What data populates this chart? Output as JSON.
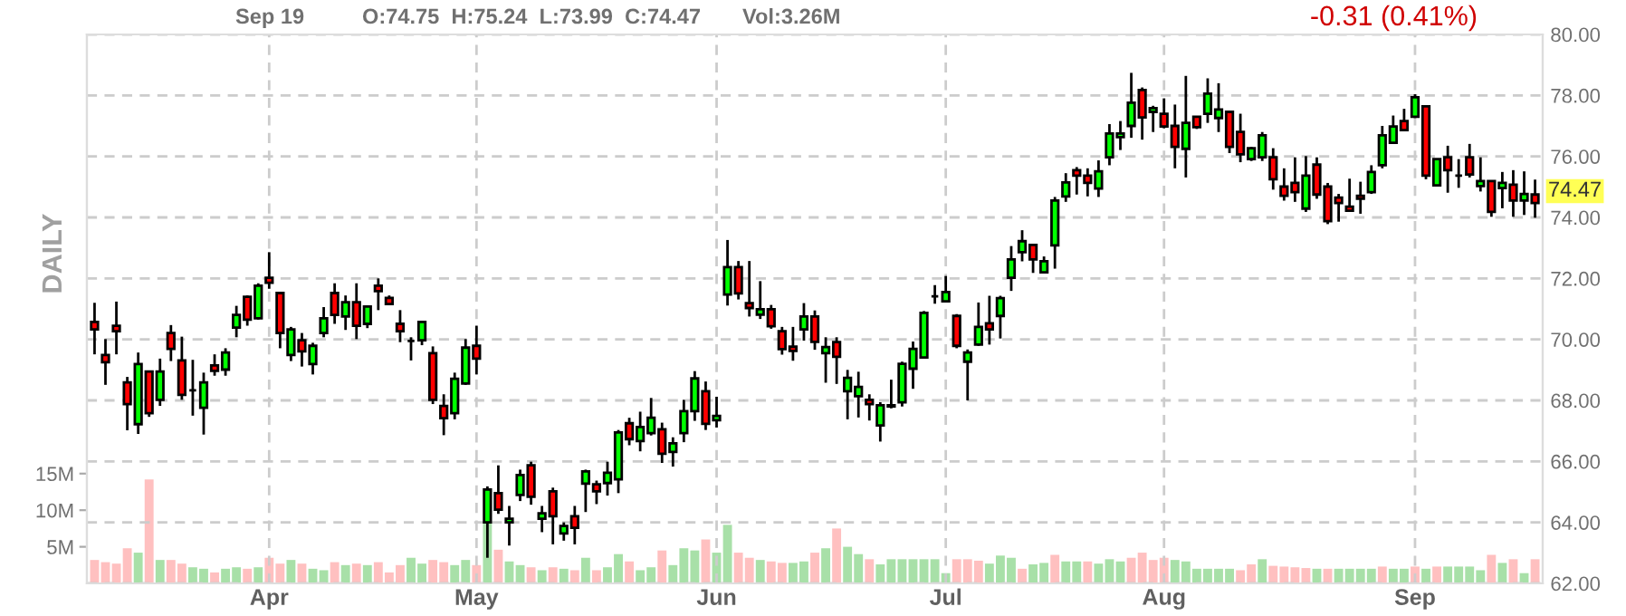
{
  "chart_data": {
    "type": "candlestick",
    "categories": [
      null,
      null,
      null,
      null,
      null,
      null,
      null,
      null,
      null,
      null,
      null,
      null,
      null,
      null,
      null,
      null,
      "Apr",
      null,
      null,
      null,
      null,
      null,
      null,
      null,
      null,
      null,
      null,
      null,
      null,
      null,
      null,
      null,
      null,
      null,
      null,
      "May",
      null,
      null,
      null,
      null,
      null,
      null,
      null,
      null,
      null,
      null,
      null,
      null,
      null,
      null,
      null,
      null,
      null,
      null,
      null,
      null,
      null,
      "Jun",
      null,
      null,
      null,
      null,
      null,
      null,
      null,
      null,
      null,
      null,
      null,
      null,
      null,
      null,
      null,
      null,
      null,
      null,
      null,
      null,
      "Jul",
      null,
      null,
      null,
      null,
      null,
      null,
      null,
      null,
      null,
      null,
      null,
      null,
      null,
      null,
      null,
      null,
      null,
      null,
      null,
      "Aug",
      null,
      null,
      null,
      null,
      null,
      null,
      null,
      null,
      null,
      null,
      null,
      null,
      null,
      null,
      null,
      null,
      null,
      null,
      null,
      null,
      null,
      null,
      "Sep",
      null,
      null,
      null,
      null,
      null,
      null,
      null,
      null,
      null,
      null,
      null
    ],
    "ohlc": [
      [
        70.57,
        71.2,
        69.51,
        70.33
      ],
      [
        69.49,
        70.01,
        68.51,
        69.25
      ],
      [
        70.45,
        71.24,
        69.51,
        70.27
      ],
      [
        68.59,
        68.77,
        67.02,
        67.88
      ],
      [
        67.22,
        69.57,
        66.9,
        69.19
      ],
      [
        68.95,
        68.95,
        67.46,
        67.58
      ],
      [
        68.02,
        69.37,
        67.82,
        68.95
      ],
      [
        70.21,
        70.47,
        69.29,
        69.69
      ],
      [
        69.31,
        70.09,
        68.02,
        68.18
      ],
      [
        68.33,
        69.33,
        67.5,
        68.33
      ],
      [
        67.76,
        68.91,
        66.88,
        68.59
      ],
      [
        69.15,
        69.51,
        68.81,
        68.97
      ],
      [
        69.01,
        69.71,
        68.81,
        69.57
      ],
      [
        70.39,
        71.1,
        70.07,
        70.8
      ],
      [
        71.4,
        71.44,
        70.45,
        70.65
      ],
      [
        70.69,
        71.84,
        70.65,
        71.76
      ],
      [
        72.02,
        72.86,
        71.66,
        71.86
      ],
      [
        71.52,
        71.54,
        69.71,
        70.21
      ],
      [
        69.49,
        70.41,
        69.29,
        70.33
      ],
      [
        69.97,
        70.21,
        69.11,
        69.61
      ],
      [
        69.19,
        69.89,
        68.85,
        69.79
      ],
      [
        70.21,
        71.06,
        70.07,
        70.69
      ],
      [
        71.52,
        71.84,
        70.51,
        70.8
      ],
      [
        70.75,
        71.44,
        70.31,
        71.22
      ],
      [
        71.22,
        71.84,
        70.01,
        70.45
      ],
      [
        70.51,
        71.1,
        70.37,
        71.08
      ],
      [
        71.76,
        72.0,
        70.96,
        71.58
      ],
      [
        71.36,
        71.44,
        71.14,
        71.16
      ],
      [
        70.51,
        70.96,
        69.91,
        70.27
      ],
      [
        69.95,
        70.07,
        69.31,
        69.95
      ],
      [
        69.97,
        70.61,
        69.81,
        70.57
      ],
      [
        69.55,
        69.77,
        67.88,
        68.02
      ],
      [
        67.82,
        68.2,
        66.86,
        67.42
      ],
      [
        67.58,
        68.91,
        67.38,
        68.71
      ],
      [
        68.55,
        70.01,
        68.51,
        69.73
      ],
      [
        69.79,
        70.45,
        68.85,
        69.37
      ],
      [
        64.0,
        65.18,
        62.84,
        65.08
      ],
      [
        64.96,
        65.87,
        64.28,
        64.42
      ],
      [
        64.0,
        64.54,
        63.24,
        64.12
      ],
      [
        64.9,
        65.73,
        64.7,
        65.55
      ],
      [
        65.87,
        65.99,
        64.58,
        64.84
      ],
      [
        64.12,
        64.54,
        63.68,
        64.3
      ],
      [
        65.02,
        65.14,
        63.28,
        64.2
      ],
      [
        63.64,
        64.0,
        63.4,
        63.88
      ],
      [
        64.2,
        64.54,
        63.28,
        63.82
      ],
      [
        65.27,
        65.73,
        64.34,
        65.67
      ],
      [
        65.25,
        65.37,
        64.6,
        65.02
      ],
      [
        65.29,
        65.99,
        64.88,
        65.63
      ],
      [
        65.41,
        67.03,
        64.96,
        66.95
      ],
      [
        67.25,
        67.43,
        66.53,
        66.73
      ],
      [
        66.67,
        67.63,
        66.33,
        67.13
      ],
      [
        66.93,
        68.08,
        66.85,
        67.43
      ],
      [
        67.05,
        67.27,
        65.95,
        66.25
      ],
      [
        66.31,
        66.79,
        65.83,
        66.59
      ],
      [
        66.93,
        68.02,
        66.63,
        67.65
      ],
      [
        67.65,
        68.96,
        67.33,
        68.72
      ],
      [
        68.3,
        68.62,
        67.03,
        67.23
      ],
      [
        67.35,
        68.12,
        67.11,
        67.49
      ],
      [
        71.47,
        73.26,
        71.11,
        72.37
      ],
      [
        72.37,
        72.57,
        71.31,
        71.51
      ],
      [
        71.19,
        72.57,
        70.75,
        71.03
      ],
      [
        70.81,
        71.91,
        70.67,
        70.99
      ],
      [
        70.99,
        71.13,
        70.35,
        70.43
      ],
      [
        70.27,
        70.41,
        69.5,
        69.68
      ],
      [
        69.76,
        70.41,
        69.3,
        69.62
      ],
      [
        70.33,
        71.19,
        69.96,
        70.75
      ],
      [
        70.75,
        70.95,
        69.66,
        69.92
      ],
      [
        69.55,
        70.07,
        68.58,
        69.75
      ],
      [
        69.91,
        70.07,
        68.54,
        69.43
      ],
      [
        68.3,
        69.0,
        67.38,
        68.74
      ],
      [
        68.14,
        68.94,
        67.44,
        68.44
      ],
      [
        68.02,
        68.2,
        67.34,
        67.88
      ],
      [
        67.18,
        67.94,
        66.65,
        67.84
      ],
      [
        67.8,
        68.68,
        67.74,
        67.84
      ],
      [
        67.94,
        69.27,
        67.8,
        69.2
      ],
      [
        69.04,
        69.93,
        68.38,
        69.69
      ],
      [
        69.41,
        70.93,
        69.39,
        70.87
      ],
      [
        71.41,
        71.78,
        71.17,
        71.41
      ],
      [
        71.25,
        72.08,
        71.25,
        71.55
      ],
      [
        70.77,
        70.83,
        69.71,
        69.79
      ],
      [
        69.27,
        69.67,
        68.0,
        69.57
      ],
      [
        69.83,
        71.21,
        69.79,
        70.41
      ],
      [
        70.53,
        71.43,
        69.83,
        70.33
      ],
      [
        70.77,
        71.43,
        70.03,
        71.35
      ],
      [
        72.02,
        73.06,
        71.59,
        72.62
      ],
      [
        72.86,
        73.58,
        72.56,
        73.22
      ],
      [
        73.1,
        73.12,
        72.18,
        72.62
      ],
      [
        72.2,
        72.72,
        72.18,
        72.56
      ],
      [
        73.08,
        74.67,
        72.32,
        74.55
      ],
      [
        74.69,
        75.45,
        74.51,
        75.15
      ],
      [
        75.55,
        75.65,
        74.75,
        75.37
      ],
      [
        75.37,
        75.61,
        74.69,
        75.13
      ],
      [
        74.95,
        75.87,
        74.67,
        75.51
      ],
      [
        75.97,
        77.06,
        75.71,
        76.75
      ],
      [
        76.63,
        77.16,
        76.21,
        76.75
      ],
      [
        77.0,
        78.74,
        76.61,
        77.76
      ],
      [
        78.18,
        78.26,
        76.55,
        77.28
      ],
      [
        77.46,
        77.66,
        76.8,
        77.58
      ],
      [
        77.4,
        77.9,
        76.92,
        76.98
      ],
      [
        77.0,
        77.7,
        75.61,
        76.31
      ],
      [
        76.25,
        78.64,
        75.31,
        77.1
      ],
      [
        77.3,
        77.3,
        76.9,
        76.96
      ],
      [
        77.4,
        78.56,
        77.1,
        78.06
      ],
      [
        77.26,
        78.4,
        76.8,
        77.54
      ],
      [
        77.46,
        77.46,
        76.11,
        76.31
      ],
      [
        76.8,
        77.4,
        75.81,
        76.07
      ],
      [
        75.91,
        76.31,
        75.85,
        76.27
      ],
      [
        75.97,
        76.8,
        75.85,
        76.69
      ],
      [
        75.97,
        76.27,
        74.91,
        75.25
      ],
      [
        75.01,
        75.61,
        74.55,
        74.71
      ],
      [
        75.13,
        75.97,
        74.51,
        74.83
      ],
      [
        74.29,
        76.01,
        74.18,
        75.37
      ],
      [
        75.73,
        75.97,
        74.61,
        74.75
      ],
      [
        75.01,
        75.13,
        73.78,
        73.88
      ],
      [
        74.65,
        74.77,
        73.86,
        74.47
      ],
      [
        74.35,
        75.27,
        74.18,
        74.22
      ],
      [
        74.71,
        75.17,
        74.12,
        74.61
      ],
      [
        74.83,
        75.71,
        74.77,
        75.49
      ],
      [
        75.71,
        77.0,
        75.61,
        76.69
      ],
      [
        76.45,
        77.34,
        76.41,
        76.98
      ],
      [
        77.16,
        77.56,
        76.84,
        76.86
      ],
      [
        77.3,
        78.04,
        77.26,
        77.94
      ],
      [
        77.64,
        77.64,
        75.25,
        75.37
      ],
      [
        75.05,
        75.91,
        75.01,
        75.91
      ],
      [
        75.97,
        76.35,
        74.81,
        75.55
      ],
      [
        75.37,
        75.91,
        74.97,
        75.37
      ],
      [
        75.97,
        76.41,
        75.31,
        75.41
      ],
      [
        75.03,
        75.97,
        74.85,
        75.19
      ],
      [
        75.19,
        75.19,
        74.02,
        74.18
      ],
      [
        74.96,
        75.49,
        74.3,
        75.13
      ],
      [
        75.07,
        75.55,
        74.02,
        74.55
      ],
      [
        74.55,
        75.51,
        74.08,
        74.77
      ],
      [
        74.75,
        75.24,
        73.99,
        74.47
      ]
    ],
    "colors": [
      "#ff0000",
      "#ff0000",
      "#ff0000",
      "#ff0000",
      "#00ff00",
      "#ff0000",
      "#00ff00",
      "#ff0000",
      "#ff0000",
      "#000000",
      "#00ff00",
      "#ff0000",
      "#00ff00",
      "#00ff00",
      "#ff0000",
      "#00ff00",
      "#ff0000",
      "#ff0000",
      "#00ff00",
      "#ff0000",
      "#00ff00",
      "#00ff00",
      "#ff0000",
      "#00ff00",
      "#ff0000",
      "#00ff00",
      "#ff0000",
      "#ff0000",
      "#ff0000",
      "#000000",
      "#00ff00",
      "#ff0000",
      "#ff0000",
      "#00ff00",
      "#00ff00",
      "#ff0000",
      "#00ff00",
      "#ff0000",
      "#00ff00",
      "#00ff00",
      "#ff0000",
      "#00ff00",
      "#ff0000",
      "#00ff00",
      "#ff0000",
      "#00ff00",
      "#ff0000",
      "#00ff00",
      "#00ff00",
      "#ff0000",
      "#00ff00",
      "#00ff00",
      "#ff0000",
      "#00ff00",
      "#00ff00",
      "#00ff00",
      "#ff0000",
      "#00ff00",
      "#00ff00",
      "#ff0000",
      "#ff0000",
      "#00ff00",
      "#ff0000",
      "#ff0000",
      "#ff0000",
      "#00ff00",
      "#ff0000",
      "#00ff00",
      "#ff0000",
      "#00ff00",
      "#00ff00",
      "#ff0000",
      "#00ff00",
      "#000000",
      "#00ff00",
      "#00ff00",
      "#00ff00",
      "#000000",
      "#00ff00",
      "#ff0000",
      "#00ff00",
      "#00ff00",
      "#ff0000",
      "#00ff00",
      "#00ff00",
      "#00ff00",
      "#ff0000",
      "#00ff00",
      "#00ff00",
      "#00ff00",
      "#ff0000",
      "#ff0000",
      "#00ff00",
      "#00ff00",
      "#00ff00",
      "#00ff00",
      "#ff0000",
      "#00ff00",
      "#ff0000",
      "#ff0000",
      "#00ff00",
      "#ff0000",
      "#00ff00",
      "#00ff00",
      "#ff0000",
      "#ff0000",
      "#00ff00",
      "#00ff00",
      "#ff0000",
      "#ff0000",
      "#ff0000",
      "#00ff00",
      "#ff0000",
      "#ff0000",
      "#ff0000",
      "#ff0000",
      "#ff0000",
      "#00ff00",
      "#00ff00",
      "#00ff00",
      "#ff0000",
      "#00ff00",
      "#ff0000",
      "#00ff00",
      "#ff0000",
      "#000000",
      "#ff0000",
      "#00ff00",
      "#ff0000",
      "#00ff00",
      "#ff0000",
      "#00ff00",
      "#ff0000"
    ],
    "series": [
      {
        "type": "bar",
        "axis": "y2",
        "values": [
          3.2,
          2.9,
          2.7,
          4.8,
          4.2,
          14.2,
          3.2,
          3.2,
          2.7,
          2.2,
          2.0,
          1.5,
          2.0,
          2.2,
          2.0,
          2.2,
          3.5,
          2.7,
          3.2,
          2.7,
          2.0,
          1.8,
          2.9,
          2.5,
          2.7,
          2.5,
          2.9,
          1.5,
          2.5,
          3.5,
          2.7,
          3.2,
          2.9,
          2.5,
          3.2,
          2.5,
          8.2,
          4.6,
          3.0,
          2.5,
          2.2,
          1.8,
          2.2,
          2.0,
          1.8,
          3.5,
          1.8,
          2.2,
          4.0,
          3.0,
          1.8,
          2.2,
          4.5,
          2.5,
          4.8,
          4.5,
          6.0,
          4.2,
          8.0,
          4.2,
          3.5,
          3.2,
          3.0,
          2.8,
          2.8,
          3.0,
          4.2,
          4.8,
          7.5,
          5.0,
          4.0,
          3.3,
          2.6,
          3.3,
          3.3,
          3.3,
          3.3,
          3.3,
          1.4,
          3.3,
          3.3,
          3.1,
          2.7,
          3.8,
          3.5,
          2.0,
          2.6,
          2.8,
          3.9,
          3.0,
          3.0,
          3.0,
          2.7,
          3.3,
          3.0,
          3.5,
          4.2,
          3.2,
          3.5,
          3.2,
          3.0,
          2.0,
          2.0,
          2.0,
          2.0,
          1.8,
          2.6,
          3.3,
          2.4,
          2.3,
          2.2,
          2.1,
          2.0,
          2.0,
          2.0,
          2.0,
          2.0,
          2.0,
          2.3,
          2.0,
          2.0,
          2.3,
          2.0,
          2.3,
          2.3,
          2.3,
          2.3,
          1.8,
          3.9,
          2.8,
          3.3,
          1.4,
          3.3
        ],
        "colors": [
          "#ffc0c0",
          "#ffc0c0",
          "#ffc0c0",
          "#ffc0c0",
          "#a8e0a8",
          "#ffc0c0",
          "#a8e0a8",
          "#ffc0c0",
          "#ffc0c0",
          "#a8e0a8",
          "#a8e0a8",
          "#ffc0c0",
          "#a8e0a8",
          "#a8e0a8",
          "#ffc0c0",
          "#a8e0a8",
          "#ffc0c0",
          "#ffc0c0",
          "#a8e0a8",
          "#ffc0c0",
          "#a8e0a8",
          "#a8e0a8",
          "#ffc0c0",
          "#a8e0a8",
          "#ffc0c0",
          "#a8e0a8",
          "#ffc0c0",
          "#ffc0c0",
          "#ffc0c0",
          "#a8e0a8",
          "#a8e0a8",
          "#ffc0c0",
          "#ffc0c0",
          "#a8e0a8",
          "#a8e0a8",
          "#ffc0c0",
          "#a8e0a8",
          "#ffc0c0",
          "#a8e0a8",
          "#a8e0a8",
          "#ffc0c0",
          "#a8e0a8",
          "#ffc0c0",
          "#a8e0a8",
          "#ffc0c0",
          "#a8e0a8",
          "#ffc0c0",
          "#a8e0a8",
          "#a8e0a8",
          "#ffc0c0",
          "#a8e0a8",
          "#a8e0a8",
          "#ffc0c0",
          "#a8e0a8",
          "#a8e0a8",
          "#a8e0a8",
          "#ffc0c0",
          "#a8e0a8",
          "#a8e0a8",
          "#ffc0c0",
          "#ffc0c0",
          "#a8e0a8",
          "#ffc0c0",
          "#ffc0c0",
          "#a8e0a8",
          "#a8e0a8",
          "#ffc0c0",
          "#a8e0a8",
          "#ffc0c0",
          "#a8e0a8",
          "#a8e0a8",
          "#ffc0c0",
          "#a8e0a8",
          "#a8e0a8",
          "#a8e0a8",
          "#a8e0a8",
          "#a8e0a8",
          "#a8e0a8",
          "#a8e0a8",
          "#ffc0c0",
          "#ffc0c0",
          "#ffc0c0",
          "#a8e0a8",
          "#a8e0a8",
          "#a8e0a8",
          "#ffc0c0",
          "#a8e0a8",
          "#a8e0a8",
          "#ffc0c0",
          "#a8e0a8",
          "#a8e0a8",
          "#ffc0c0",
          "#a8e0a8",
          "#a8e0a8",
          "#a8e0a8",
          "#ffc0c0",
          "#ffc0c0",
          "#ffc0c0",
          "#ffc0c0",
          "#a8e0a8",
          "#a8e0a8",
          "#a8e0a8",
          "#a8e0a8",
          "#a8e0a8",
          "#a8e0a8",
          "#ffc0c0",
          "#ffc0c0",
          "#a8e0a8",
          "#ffc0c0",
          "#ffc0c0",
          "#ffc0c0",
          "#ffc0c0",
          "#a8e0a8",
          "#ffc0c0",
          "#a8e0a8",
          "#a8e0a8",
          "#a8e0a8",
          "#a8e0a8",
          "#ffc0c0",
          "#a8e0a8",
          "#a8e0a8",
          "#ffc0c0",
          "#a8e0a8",
          "#ffc0c0",
          "#a8e0a8",
          "#a8e0a8",
          "#a8e0a8",
          "#a8e0a8",
          "#ffc0c0",
          "#a8e0a8",
          "#ffc0c0",
          "#a8e0a8",
          "#ffc0c0"
        ]
      }
    ],
    "ylim": [
      62,
      80
    ],
    "yticks": [
      {
        "value": 62,
        "label": "62.00"
      },
      {
        "value": 64,
        "label": "64.00"
      },
      {
        "value": 66,
        "label": "66.00"
      },
      {
        "value": 68,
        "label": "68.00"
      },
      {
        "value": 70,
        "label": "70.00"
      },
      {
        "value": 72,
        "label": "72.00"
      },
      {
        "value": 74,
        "label": "74.00"
      },
      {
        "value": 76,
        "label": "76.00"
      },
      {
        "value": 78,
        "label": "78.00"
      },
      {
        "value": 80,
        "label": "80.00"
      }
    ],
    "y2lim": [
      0,
      75
    ],
    "y2ticks": [
      {
        "value": 5,
        "label": "5M"
      },
      {
        "value": 10,
        "label": "10M"
      },
      {
        "value": 15,
        "label": "15M"
      }
    ],
    "grid": true,
    "annotations": [
      "Sep 19",
      "O:74.75  H:75.24  L:73.99  C:74.47",
      "Vol:3.26M",
      "-0.31 (0.41%)",
      "DAILY",
      "74.47"
    ]
  }
}
